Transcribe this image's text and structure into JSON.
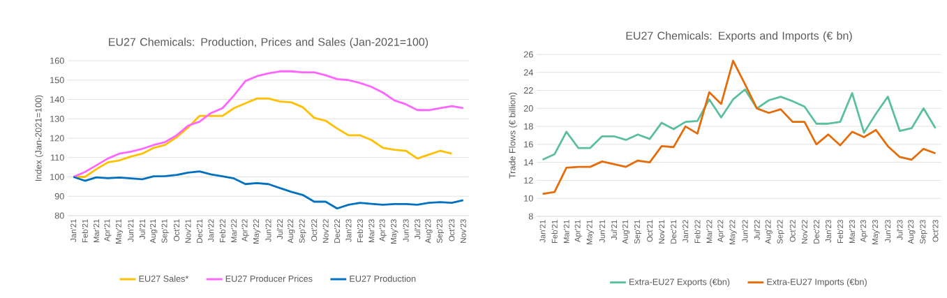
{
  "chart_data": [
    {
      "type": "line",
      "title": "EU27 Chemicals: Production, Prices and Sales (Jan-2021=100)",
      "ylabel": "Index (Jan-2021=100)",
      "categories": [
        "Jan'21",
        "Feb'21",
        "Mar'21",
        "Apr'21",
        "May'21",
        "Jun'21",
        "Jul'21",
        "Aug'21",
        "Sep'21",
        "Oct'21",
        "Nov'21",
        "Dec'21",
        "Jan'22",
        "Feb'22",
        "Mar'22",
        "Apr'22",
        "May'22",
        "Jun'22",
        "Jul'22",
        "Aug'22",
        "Sep'22",
        "Oct'22",
        "Nov'22",
        "Dec'22",
        "Jan'23",
        "Feb'23",
        "Mar'23",
        "Apr'23",
        "May'23",
        "Jun'23",
        "Jul'23",
        "Aug'23",
        "Sep'23",
        "Oct'23",
        "Nov'23"
      ],
      "series": [
        {
          "name": "EU27 Sales*",
          "color": "#ffc000",
          "values": [
            100,
            100,
            104,
            107.5,
            108.5,
            110.5,
            112,
            115,
            116.5,
            120.5,
            125.5,
            131.5,
            131.5,
            131.5,
            135.5,
            138,
            140.5,
            140.5,
            139,
            138.5,
            136,
            130.5,
            129,
            125,
            121.5,
            121.5,
            119,
            115,
            114,
            113.5,
            109.5,
            111.5,
            113.5,
            112,
            null
          ]
        },
        {
          "name": "EU27 Producer Prices",
          "color": "#ff66ff",
          "values": [
            100,
            102.5,
            106,
            109.5,
            112,
            113,
            114.5,
            116.5,
            118,
            121.5,
            126.5,
            128.5,
            133,
            135.5,
            142,
            149.5,
            152,
            153.5,
            154.5,
            154.5,
            154,
            154,
            152.5,
            150.5,
            150,
            148.5,
            146.5,
            143.5,
            139.5,
            137.5,
            134.5,
            134.5,
            135.5,
            136.5,
            135.5
          ]
        },
        {
          "name": "EU27 Production",
          "color": "#0070c0",
          "values": [
            100,
            98,
            99.8,
            99.3,
            99.7,
            99.2,
            98.8,
            100.3,
            100.4,
            101,
            102.2,
            102.8,
            101.3,
            100.3,
            99.2,
            96.3,
            96.8,
            96.3,
            94.3,
            92.3,
            90.7,
            87.2,
            87.2,
            83.7,
            85.6,
            86.6,
            86.1,
            85.6,
            86,
            86,
            85.6,
            86.6,
            87,
            86.6,
            88
          ]
        }
      ],
      "ylim": [
        80,
        160
      ],
      "yticks": [
        80,
        90,
        100,
        110,
        120,
        130,
        140,
        150,
        160
      ],
      "grid": "y",
      "legend": "bottom"
    },
    {
      "type": "line",
      "title": "EU27 Chemicals: Exports and Imports (€ bn)",
      "ylabel": "Trade Flows (€ billion)",
      "categories": [
        "Jan'21",
        "Feb'21",
        "Mar'21",
        "Apr'21",
        "May'21",
        "Jun'21",
        "Jul'21",
        "Aug'21",
        "Sep'21",
        "Oct'21",
        "Nov'21",
        "Dec'21",
        "Jan'22",
        "Feb'22",
        "Mar'22",
        "Apr'22",
        "May'22",
        "Jun'22",
        "Jul'22",
        "Aug'22",
        "Sep'22",
        "Oct'22",
        "Nov'22",
        "Dec'22",
        "Jan'23",
        "Feb'23",
        "Mar'23",
        "Apr'23",
        "May'23",
        "Jun'23",
        "Jul'23",
        "Aug'23",
        "Sep'23",
        "Oct'23"
      ],
      "series": [
        {
          "name": "Extra-EU27 Exports (€bn)",
          "color": "#5bbf9f",
          "values": [
            14.3,
            14.9,
            17.4,
            15.6,
            15.6,
            16.9,
            16.9,
            16.5,
            17.1,
            16.6,
            18.4,
            17.7,
            18.5,
            18.6,
            21.0,
            19.0,
            21.0,
            22.1,
            20.0,
            20.9,
            21.3,
            20.8,
            20.2,
            18.3,
            18.3,
            18.5,
            21.7,
            17.3,
            19.4,
            21.3,
            17.5,
            17.8,
            20.0,
            17.8
          ]
        },
        {
          "name": "Extra-EU27 Imports (€bn)",
          "color": "#e46c0a",
          "values": [
            10.5,
            10.7,
            13.4,
            13.5,
            13.5,
            14.1,
            13.8,
            13.5,
            14.2,
            14.0,
            15.8,
            15.7,
            18.0,
            17.2,
            21.8,
            20.5,
            25.3,
            22.7,
            20.0,
            19.5,
            19.9,
            18.5,
            18.5,
            16.0,
            17.1,
            15.9,
            17.4,
            16.8,
            17.6,
            15.8,
            14.6,
            14.3,
            15.5,
            15.0
          ]
        }
      ],
      "ylim": [
        8,
        26
      ],
      "yticks": [
        8,
        10,
        12,
        14,
        16,
        18,
        20,
        22,
        24,
        26
      ],
      "grid": "y",
      "legend": "bottom"
    }
  ]
}
